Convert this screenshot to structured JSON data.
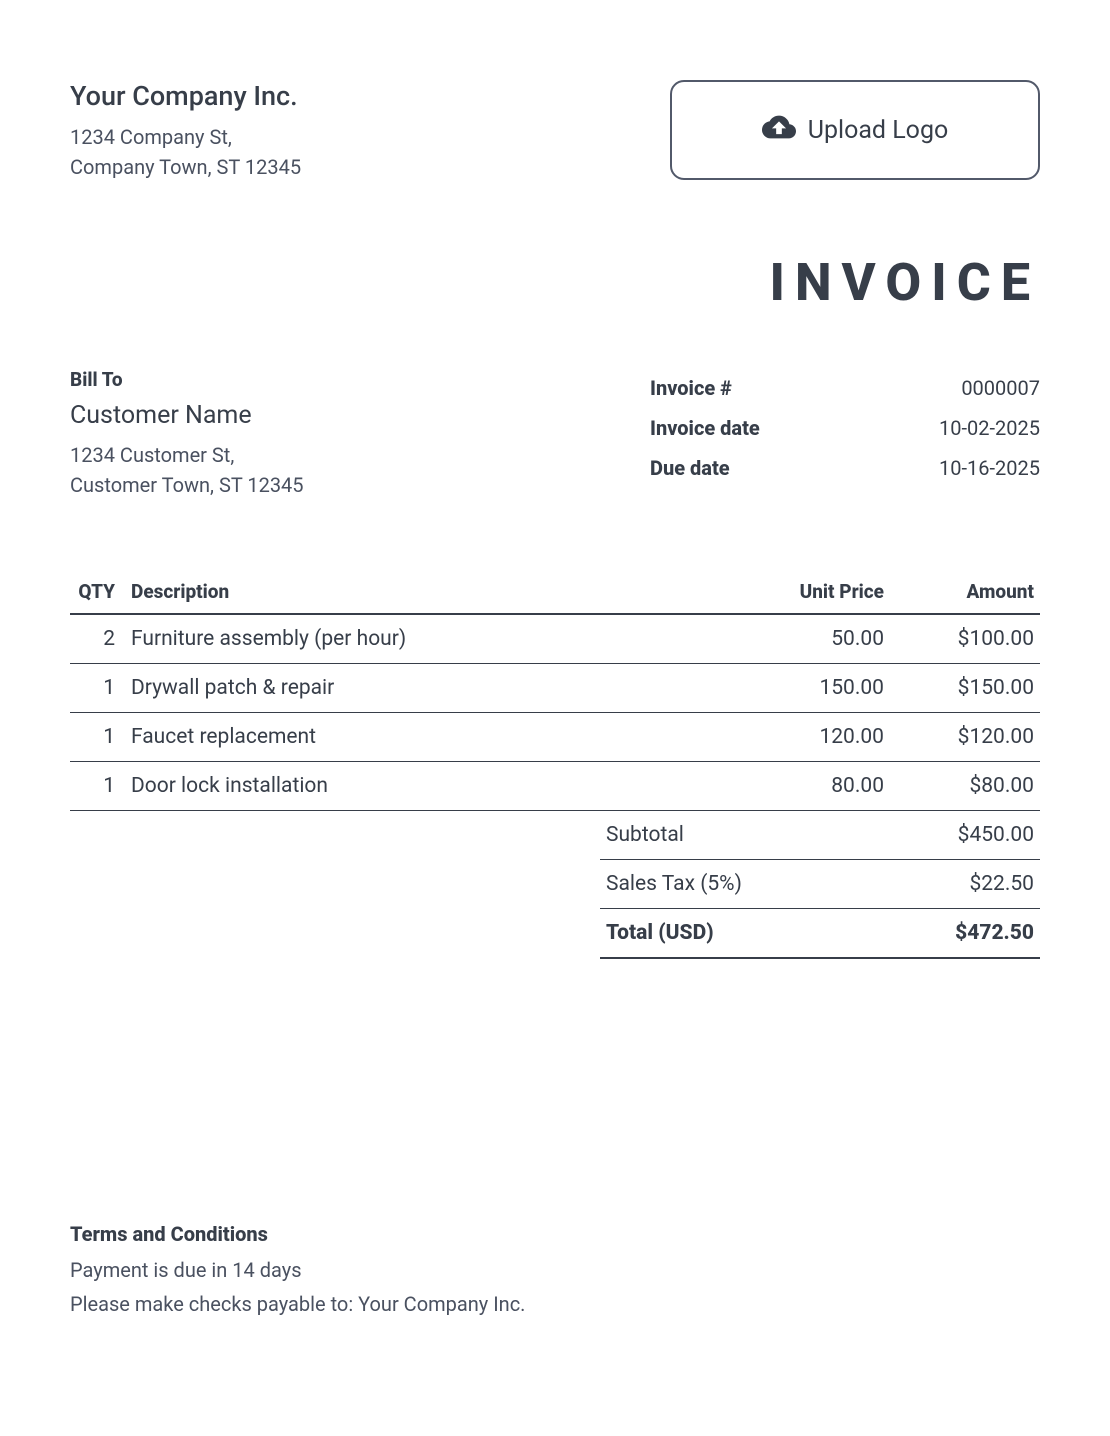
{
  "company": {
    "name": "Your Company Inc.",
    "address_line1": "1234 Company St,",
    "address_line2": "Company Town, ST 12345"
  },
  "upload_logo_label": "Upload Logo",
  "invoice_title": "INVOICE",
  "bill_to": {
    "label": "Bill To",
    "customer_name": "Customer Name",
    "address_line1": "1234 Customer St,",
    "address_line2": "Customer Town, ST 12345"
  },
  "meta": {
    "invoice_number_label": "Invoice #",
    "invoice_number": "0000007",
    "invoice_date_label": "Invoice date",
    "invoice_date": "10-02-2025",
    "due_date_label": "Due date",
    "due_date": "10-16-2025"
  },
  "columns": {
    "qty": "QTY",
    "description": "Description",
    "unit_price": "Unit Price",
    "amount": "Amount"
  },
  "items": [
    {
      "qty": "2",
      "description": "Furniture assembly (per hour)",
      "unit_price": "50.00",
      "amount": "$100.00"
    },
    {
      "qty": "1",
      "description": "Drywall patch & repair",
      "unit_price": "150.00",
      "amount": "$150.00"
    },
    {
      "qty": "1",
      "description": "Faucet replacement",
      "unit_price": "120.00",
      "amount": "$120.00"
    },
    {
      "qty": "1",
      "description": "Door lock installation",
      "unit_price": "80.00",
      "amount": "$80.00"
    }
  ],
  "totals": {
    "subtotal_label": "Subtotal",
    "subtotal": "$450.00",
    "tax_label": "Sales Tax (5%)",
    "tax": "$22.50",
    "total_label": "Total (USD)",
    "total": "$472.50"
  },
  "terms": {
    "title": "Terms and Conditions",
    "line1": "Payment is due in 14 days",
    "line2": "Please make checks payable to: Your Company Inc."
  },
  "colors": {
    "text_primary": "#373e49",
    "text_secondary": "#4a5160",
    "border": "#373e49",
    "background": "#ffffff"
  }
}
